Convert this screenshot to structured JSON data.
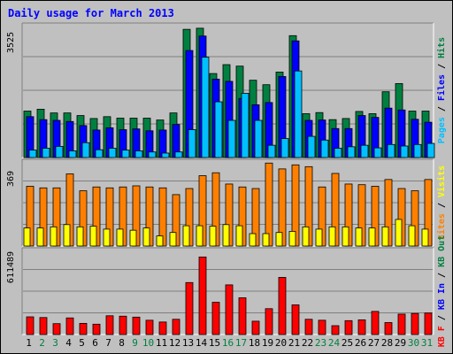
{
  "title": "Daily usage for March 2013",
  "colors": {
    "background": "#c0c0c0",
    "panel": "#c0c0c0",
    "grid": "#808080",
    "hits": "#008040",
    "files": "#0000ff",
    "pages": "#00c0ff",
    "visits": "#ffff00",
    "sites": "#ff8000",
    "kb_in": "#0000ff",
    "kb_out": "#008040",
    "kb_f": "#ff0000",
    "title": "#0000ff",
    "weekday_label": "#000000",
    "weekend_label": "#008040"
  },
  "chart_data": [
    {
      "type": "bar",
      "panel": "hits-files-pages",
      "ymax_label": "3525",
      "ylim": [
        0,
        3525
      ],
      "right_labels": [
        "Pages",
        "Files",
        "Hits"
      ],
      "categories": [
        "1",
        "2",
        "3",
        "4",
        "5",
        "6",
        "7",
        "8",
        "9",
        "10",
        "11",
        "12",
        "13",
        "14",
        "15",
        "16",
        "17",
        "18",
        "19",
        "20",
        "21",
        "22",
        "23",
        "24",
        "25",
        "26",
        "27",
        "28",
        "29",
        "30",
        "31"
      ],
      "weekend": [
        "2",
        "3",
        "9",
        "10",
        "16",
        "17",
        "23",
        "24",
        "30",
        "31"
      ],
      "series": [
        {
          "name": "Hits",
          "values": [
            1250,
            1300,
            1200,
            1200,
            1130,
            1050,
            1100,
            1060,
            1060,
            1060,
            1010,
            1200,
            3450,
            3480,
            2260,
            2500,
            2460,
            2080,
            1960,
            2300,
            3280,
            1180,
            1210,
            1020,
            1050,
            1240,
            1180,
            1770,
            1990,
            1250,
            1250
          ]
        },
        {
          "name": "Files",
          "values": [
            1100,
            1020,
            1000,
            970,
            860,
            740,
            800,
            750,
            770,
            720,
            740,
            890,
            2880,
            3270,
            2110,
            2050,
            1590,
            1420,
            1480,
            2180,
            3140,
            1000,
            1010,
            780,
            780,
            1130,
            1080,
            1330,
            1280,
            1030,
            950
          ]
        },
        {
          "name": "Pages",
          "values": [
            200,
            250,
            300,
            180,
            400,
            210,
            250,
            200,
            180,
            150,
            120,
            150,
            750,
            2700,
            1500,
            1000,
            1730,
            1000,
            330,
            510,
            2330,
            570,
            470,
            250,
            290,
            330,
            260,
            350,
            310,
            350,
            380
          ]
        }
      ]
    },
    {
      "type": "bar",
      "panel": "visits-sites",
      "ymax_label": "369",
      "ylim": [
        0,
        369
      ],
      "right_labels": [
        "Sites",
        "Visits"
      ],
      "categories": [
        "1",
        "2",
        "3",
        "4",
        "5",
        "6",
        "7",
        "8",
        "9",
        "10",
        "11",
        "12",
        "13",
        "14",
        "15",
        "16",
        "17",
        "18",
        "19",
        "20",
        "21",
        "22",
        "23",
        "24",
        "25",
        "26",
        "27",
        "28",
        "29",
        "30",
        "31"
      ],
      "series": [
        {
          "name": "Sites",
          "values": [
            265,
            258,
            258,
            320,
            245,
            262,
            258,
            262,
            267,
            262,
            258,
            228,
            255,
            312,
            325,
            275,
            262,
            255,
            368,
            342,
            360,
            352,
            262,
            322,
            275,
            272,
            265,
            295,
            255,
            245,
            295
          ]
        },
        {
          "name": "Visits",
          "values": [
            80,
            80,
            85,
            95,
            85,
            88,
            75,
            75,
            70,
            80,
            45,
            60,
            90,
            90,
            88,
            95,
            90,
            55,
            55,
            60,
            65,
            85,
            75,
            85,
            85,
            80,
            80,
            85,
            118,
            90,
            75
          ]
        }
      ]
    },
    {
      "type": "bar",
      "panel": "kb",
      "ymax_label": "611489",
      "ylim": [
        0,
        611489
      ],
      "right_labels": [
        "KB F",
        "KB In",
        "KB Out"
      ],
      "categories": [
        "1",
        "2",
        "3",
        "4",
        "5",
        "6",
        "7",
        "8",
        "9",
        "10",
        "11",
        "12",
        "13",
        "14",
        "15",
        "16",
        "17",
        "18",
        "19",
        "20",
        "21",
        "22",
        "23",
        "24",
        "25",
        "26",
        "27",
        "28",
        "29",
        "30",
        "31"
      ],
      "series": [
        {
          "name": "KB F",
          "values": [
            130000,
            125000,
            80000,
            122000,
            82000,
            76000,
            138000,
            135000,
            128000,
            105000,
            92000,
            112000,
            382000,
            570000,
            237000,
            365000,
            270000,
            98000,
            190000,
            420000,
            218000,
            112000,
            105000,
            65000,
            102000,
            108000,
            170000,
            88000,
            150000,
            155000,
            158000
          ]
        }
      ]
    }
  ]
}
